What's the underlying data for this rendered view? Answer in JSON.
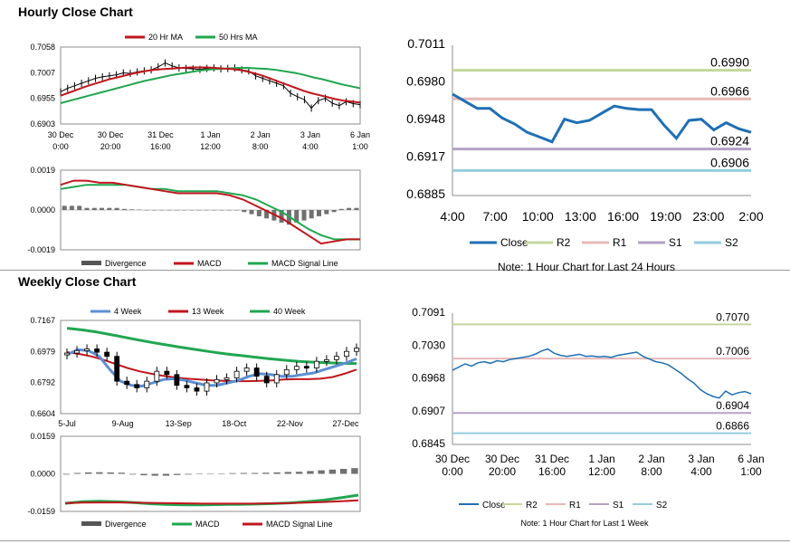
{
  "sections": {
    "hourly_title": "Hourly Close Chart",
    "weekly_title": "Weekly Close Chart"
  },
  "chart_data": [
    {
      "id": "hourly-price",
      "type": "line",
      "ylim": [
        0.6903,
        0.7058
      ],
      "yticks": [
        "0.7058",
        "0.7007",
        "0.6955",
        "0.6903"
      ],
      "xticks": [
        [
          "30 Dec",
          "0:00"
        ],
        [
          "30 Dec",
          "20:00"
        ],
        [
          "31 Dec",
          "16:00"
        ],
        [
          "1 Jan",
          "12:00"
        ],
        [
          "2 Jan",
          "8:00"
        ],
        [
          "3 Jan",
          "4:00"
        ],
        [
          "6 Jan",
          "1:00"
        ]
      ],
      "legend": [
        "20 Hr MA",
        "50 Hrs MA"
      ],
      "series": [
        {
          "name": "Close",
          "color": "#000000",
          "values": [
            0.6968,
            0.6975,
            0.698,
            0.6985,
            0.699,
            0.6995,
            0.6998,
            0.7,
            0.7002,
            0.7006,
            0.7005,
            0.7008,
            0.701,
            0.7012,
            0.7018,
            0.7026,
            0.702,
            0.7016,
            0.7015,
            0.7014,
            0.7013,
            0.7015,
            0.7016,
            0.7014,
            0.7015,
            0.7016,
            0.7012,
            0.701,
            0.7,
            0.6995,
            0.699,
            0.6985,
            0.698,
            0.6965,
            0.6958,
            0.6952,
            0.6935,
            0.695,
            0.6955,
            0.6945,
            0.694,
            0.6948,
            0.6944,
            0.6942
          ]
        },
        {
          "name": "20 Hr MA",
          "color": "#c0161d",
          "values": [
            0.696,
            0.6966,
            0.6972,
            0.6978,
            0.6983,
            0.6988,
            0.6993,
            0.6997,
            0.7001,
            0.7005,
            0.7008,
            0.7011,
            0.7013,
            0.7014,
            0.7015,
            0.7016,
            0.7017,
            0.7017,
            0.7017,
            0.7016,
            0.7015,
            0.7014,
            0.7012,
            0.7009,
            0.7005,
            0.7,
            0.6994,
            0.6988,
            0.6982,
            0.6976,
            0.697,
            0.6965,
            0.6961,
            0.6957,
            0.6953,
            0.695,
            0.6948,
            0.6946
          ]
        },
        {
          "name": "50 Hrs MA",
          "color": "#20a650",
          "values": [
            0.6945,
            0.695,
            0.6955,
            0.696,
            0.6965,
            0.697,
            0.6975,
            0.698,
            0.6985,
            0.699,
            0.6994,
            0.6998,
            0.7002,
            0.7005,
            0.7008,
            0.7011,
            0.7013,
            0.7014,
            0.7015,
            0.7016,
            0.7016,
            0.7015,
            0.7014,
            0.7012,
            0.7009,
            0.7006,
            0.7002,
            0.6997,
            0.6993,
            0.6988,
            0.6983,
            0.6979,
            0.6975
          ]
        }
      ]
    },
    {
      "id": "hourly-macd",
      "type": "line",
      "ylim": [
        -0.0019,
        0.0019
      ],
      "yticks": [
        "0.0019",
        "0.0000",
        "-0.0019"
      ],
      "legend": [
        "Divergence",
        "MACD",
        "MACD Signal Line"
      ],
      "series": [
        {
          "name": "Divergence",
          "color": "#707070",
          "type": "bar",
          "values": [
            0.0002,
            0.0002,
            0.0002,
            0.0001,
            0.0001,
            0.0001,
            0.0001,
            0.0001,
            5e-05,
            3e-05,
            2e-05,
            0.0,
            0.0,
            0,
            0,
            0,
            0,
            0,
            0,
            0,
            0,
            0,
            0,
            0,
            -0.0001,
            -0.0002,
            -0.0003,
            -0.0004,
            -0.0005,
            -0.0006,
            -0.0007,
            -0.0006,
            -0.0005,
            -0.0004,
            -0.0003,
            -0.0002,
            -0.0001,
            5e-05,
            0.0001,
            0.0001
          ]
        },
        {
          "name": "MACD",
          "color": "#c0161d",
          "values": [
            0.0012,
            0.0014,
            0.0014,
            0.0013,
            0.0013,
            0.0012,
            0.0011,
            0.001,
            0.0009,
            0.0008,
            0.0008,
            0.0008,
            0.0008,
            0.0007,
            0.0005,
            0.0002,
            -0.0001,
            -0.0004,
            -0.0008,
            -0.0012,
            -0.0016,
            -0.0015,
            -0.0014,
            -0.0014
          ]
        },
        {
          "name": "MACD Signal Line",
          "color": "#20a650",
          "values": [
            0.001,
            0.0011,
            0.0012,
            0.0012,
            0.0012,
            0.0012,
            0.0011,
            0.001,
            0.001,
            0.0009,
            0.0009,
            0.0009,
            0.0009,
            0.0008,
            0.0007,
            0.0005,
            0.0002,
            -0.0001,
            -0.0005,
            -0.0009,
            -0.0012,
            -0.0014,
            -0.0014,
            -0.0014
          ]
        }
      ]
    },
    {
      "id": "hourly-sr",
      "type": "line",
      "ylim": [
        0.6885,
        0.7011
      ],
      "yticks": [
        "0.7011",
        "0.6980",
        "0.6948",
        "0.6917",
        "0.6885"
      ],
      "xticks": [
        "4:00",
        "7:00",
        "10:00",
        "13:00",
        "16:00",
        "19:00",
        "23:00",
        "2:00"
      ],
      "legend": [
        "Close",
        "R2",
        "R1",
        "S1",
        "S2"
      ],
      "levels": [
        {
          "name": "R2",
          "value": 0.699,
          "label": "0.6990",
          "color": "#c4d79b"
        },
        {
          "name": "R1",
          "value": 0.6966,
          "label": "0.6966",
          "color": "#e6b9b8"
        },
        {
          "name": "S1",
          "value": 0.6924,
          "label": "0.6924",
          "color": "#b3a2c7"
        },
        {
          "name": "S2",
          "value": 0.6906,
          "label": "0.6906",
          "color": "#93cddd"
        }
      ],
      "series": [
        {
          "name": "Close",
          "color": "#1f6fb4",
          "values": [
            0.697,
            0.6964,
            0.6958,
            0.6958,
            0.695,
            0.6945,
            0.6938,
            0.6934,
            0.693,
            0.6949,
            0.6946,
            0.6948,
            0.6954,
            0.696,
            0.6958,
            0.6957,
            0.6957,
            0.6944,
            0.6933,
            0.6948,
            0.6949,
            0.694,
            0.6946,
            0.6941,
            0.6938
          ]
        }
      ],
      "note": "Note: 1 Hour Chart for Last 24 Hours"
    },
    {
      "id": "weekly-price",
      "type": "line",
      "ylim": [
        0.6604,
        0.7167
      ],
      "yticks": [
        "0.7167",
        "0.6979",
        "0.6792",
        "0.6604"
      ],
      "xticks": [
        "5-Jul",
        "9-Aug",
        "13-Sep",
        "18-Oct",
        "22-Nov",
        "27-Dec"
      ],
      "legend": [
        "4 Week",
        "13 Week",
        "40 Week"
      ],
      "series": [
        {
          "name": "Close",
          "color": "#000000",
          "values": [
            0.697,
            0.6985,
            0.6995,
            0.6975,
            0.695,
            0.68,
            0.678,
            0.676,
            0.68,
            0.686,
            0.684,
            0.6775,
            0.676,
            0.674,
            0.679,
            0.681,
            0.682,
            0.686,
            0.688,
            0.683,
            0.679,
            0.684,
            0.687,
            0.689,
            0.688,
            0.692,
            0.693,
            0.695,
            0.698,
            0.7
          ]
        },
        {
          "name": "4 Week",
          "color": "#5b8fd4",
          "values": [
            0.696,
            0.699,
            0.6985,
            0.695,
            0.687,
            0.68,
            0.6775,
            0.677,
            0.679,
            0.681,
            0.6815,
            0.6805,
            0.679,
            0.6775,
            0.6775,
            0.679,
            0.6805,
            0.683,
            0.6845,
            0.684,
            0.683,
            0.683,
            0.684,
            0.685,
            0.687,
            0.689,
            0.691,
            0.6935
          ]
        },
        {
          "name": "13 Week",
          "color": "#c0161d",
          "values": [
            0.6975,
            0.6965,
            0.695,
            0.693,
            0.6905,
            0.688,
            0.686,
            0.6845,
            0.6832,
            0.6822,
            0.6815,
            0.681,
            0.6805,
            0.6802,
            0.68,
            0.68,
            0.6802,
            0.6805,
            0.681,
            0.6812,
            0.6812,
            0.6815,
            0.6825,
            0.6845,
            0.687
          ]
        },
        {
          "name": "40 Week",
          "color": "#20a650",
          "values": [
            0.712,
            0.711,
            0.7098,
            0.7082,
            0.7065,
            0.7048,
            0.7032,
            0.7017,
            0.7003,
            0.699,
            0.6977,
            0.6965,
            0.6955,
            0.6945,
            0.6935,
            0.6927,
            0.692,
            0.6915,
            0.6911,
            0.6908,
            0.6907
          ]
        }
      ]
    },
    {
      "id": "weekly-macd",
      "type": "line",
      "ylim": [
        -0.0159,
        0.0159
      ],
      "yticks": [
        "0.0159",
        "0.0000",
        "-0.0159"
      ],
      "legend": [
        "Divergence",
        "MACD",
        "MACD Signal Line"
      ],
      "series": [
        {
          "name": "Divergence",
          "color": "#707070",
          "type": "bar",
          "values": [
            -0.0003,
            0.0004,
            0.0006,
            0.0007,
            0.0006,
            0.0005,
            -0.0003,
            -0.0006,
            -0.0008,
            -0.0008,
            -0.0005,
            -0.0003,
            -0.0001,
            0.0,
            0.0002,
            0.0003,
            0.0004,
            0.0004,
            0.0005,
            0.0006,
            0.0008,
            0.0009,
            0.0012,
            0.0015,
            0.0018,
            0.0021,
            0.0024
          ]
        },
        {
          "name": "MACD",
          "color": "#20a650",
          "values": [
            -0.0125,
            -0.0118,
            -0.0116,
            -0.0118,
            -0.0122,
            -0.0127,
            -0.013,
            -0.0131,
            -0.0131,
            -0.013,
            -0.0129,
            -0.0128,
            -0.0126,
            -0.0123,
            -0.0118,
            -0.0111,
            -0.0101,
            -0.009
          ]
        },
        {
          "name": "MACD Signal Line",
          "color": "#c0161d",
          "values": [
            -0.0124,
            -0.0122,
            -0.0121,
            -0.0121,
            -0.0122,
            -0.0123,
            -0.0124,
            -0.0125,
            -0.0126,
            -0.0126,
            -0.0126,
            -0.0126,
            -0.0125,
            -0.0124,
            -0.0122,
            -0.0119,
            -0.0116,
            -0.0112
          ]
        }
      ]
    },
    {
      "id": "weekly-sr",
      "type": "line",
      "ylim": [
        0.6845,
        0.7091
      ],
      "yticks": [
        "0.7091",
        "0.7030",
        "0.6968",
        "0.6907",
        "0.6845"
      ],
      "xticks": [
        [
          "30 Dec",
          "0:00"
        ],
        [
          "30 Dec",
          "20:00"
        ],
        [
          "31 Dec",
          "16:00"
        ],
        [
          "1 Jan",
          "12:00"
        ],
        [
          "2 Jan",
          "8:00"
        ],
        [
          "3 Jan",
          "4:00"
        ],
        [
          "6 Jan",
          "1:00"
        ]
      ],
      "legend": [
        "Close",
        "R2",
        "R1",
        "S1",
        "S2"
      ],
      "levels": [
        {
          "name": "R2",
          "value": 0.707,
          "label": "0.7070",
          "color": "#c4d79b"
        },
        {
          "name": "R1",
          "value": 0.7006,
          "label": "0.7006",
          "color": "#e6b9b8"
        },
        {
          "name": "S1",
          "value": 0.6904,
          "label": "0.6904",
          "color": "#b3a2c7"
        },
        {
          "name": "S2",
          "value": 0.6866,
          "label": "0.6866",
          "color": "#93cddd"
        }
      ],
      "series": [
        {
          "name": "Close",
          "color": "#1f6fb4",
          "values": [
            0.6984,
            0.699,
            0.6996,
            0.6992,
            0.6998,
            0.7,
            0.6997,
            0.7002,
            0.7,
            0.7004,
            0.7006,
            0.7008,
            0.701,
            0.7014,
            0.702,
            0.7024,
            0.7016,
            0.7012,
            0.701,
            0.7012,
            0.7014,
            0.701,
            0.7011,
            0.7009,
            0.701,
            0.7008,
            0.7012,
            0.7014,
            0.7016,
            0.7018,
            0.701,
            0.7005,
            0.7,
            0.6998,
            0.6994,
            0.6986,
            0.6978,
            0.6968,
            0.696,
            0.6948,
            0.694,
            0.6935,
            0.6932,
            0.6945,
            0.6938,
            0.6942,
            0.6944,
            0.694
          ]
        }
      ],
      "note": "Note: 1 Hour Chart for Last 1 Week"
    }
  ]
}
